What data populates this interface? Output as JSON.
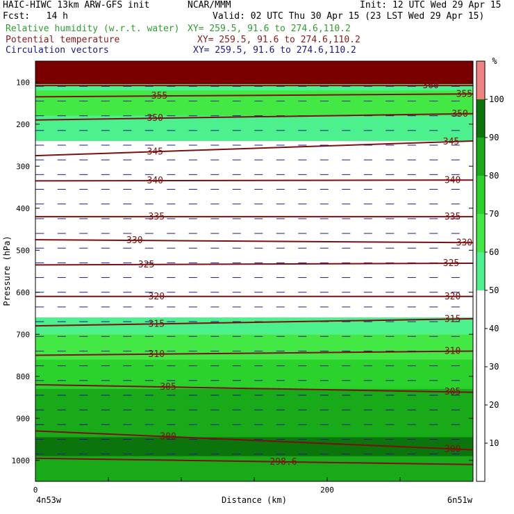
{
  "header": {
    "line1_left": "HAIC-HIWC 13km ARW-GFS init",
    "line1_mid": "NCAR/MMM",
    "line1_right": "Init: 12 UTC Wed 29 Apr 15",
    "line2_left": "Fcst:   14 h",
    "line2_right": "Valid: 02 UTC Thu 30 Apr 15 (23 LST Wed 29 Apr 15)",
    "legend": [
      {
        "label": "Relative humidity (w.r.t. water)",
        "xy": "XY= 259.5, 91.6 to 274.6,110.2",
        "color": "#2e9e2e"
      },
      {
        "label": "Potential temperature",
        "xy": "XY= 259.5, 91.6 to 274.6,110.2",
        "color": "#8b1a1a"
      },
      {
        "label": "Circulation vectors",
        "xy": "XY= 259.5, 91.6 to 274.6,110.2",
        "color": "#1a1a8b"
      }
    ]
  },
  "chart_data": {
    "type": "heatmap",
    "xlabel": "Distance (km)",
    "ylabel": "Pressure (hPa)",
    "xlim": [
      0,
      300
    ],
    "ylim": [
      1050,
      50
    ],
    "x_ticks": [
      0,
      200
    ],
    "y_ticks": [
      100,
      200,
      300,
      400,
      500,
      600,
      700,
      800,
      900,
      1000
    ],
    "x_endpoints": {
      "left": "4n53w",
      "right": "6n51w"
    },
    "colorbar": {
      "unit": "%",
      "ticks": [
        10,
        20,
        30,
        40,
        50,
        60,
        70,
        80,
        90,
        100
      ],
      "levels": [
        {
          "from": 50,
          "to": 60,
          "color": "#4cf08c"
        },
        {
          "from": 60,
          "to": 70,
          "color": "#44e844"
        },
        {
          "from": 70,
          "to": 80,
          "color": "#2cd22c"
        },
        {
          "from": 80,
          "to": 90,
          "color": "#18aa18"
        },
        {
          "from": 90,
          "to": 100,
          "color": "#0b740b"
        },
        {
          "from": 100,
          "to": 110,
          "color": "#f08282"
        }
      ]
    },
    "rh_regions": [
      {
        "color": "#7a0000",
        "top": 50,
        "bottom": 105
      },
      {
        "color": "#4cf08c",
        "top": 105,
        "bottom": 240
      },
      {
        "color": "#44e844",
        "top": 120,
        "bottom": 180
      },
      {
        "color": "#4cf08c",
        "top": 660,
        "bottom": 700
      },
      {
        "color": "#44e844",
        "top": 700,
        "bottom": 760
      },
      {
        "color": "#2cd22c",
        "top": 760,
        "bottom": 1050
      },
      {
        "color": "#18aa18",
        "top": 830,
        "bottom": 1050
      },
      {
        "color": "#0b740b",
        "top": 945,
        "bottom": 990
      }
    ],
    "theta_contours": [
      {
        "label": "360",
        "x": [
          0,
          300
        ],
        "p": [
          108,
          108
        ],
        "label_x": 271
      },
      {
        "label": "355",
        "x": [
          0,
          300
        ],
        "p": [
          135,
          128
        ],
        "label_x": 85
      },
      {
        "label": "355",
        "x": [
          0,
          300
        ],
        "p": [
          135,
          128
        ],
        "label_x": 294
      },
      {
        "label": "350",
        "x": [
          0,
          300
        ],
        "p": [
          190,
          175
        ],
        "label_x": 82
      },
      {
        "label": "350",
        "x": [
          0,
          300
        ],
        "p": [
          190,
          175
        ],
        "label_x": 291
      },
      {
        "label": "345",
        "x": [
          0,
          300
        ],
        "p": [
          275,
          240
        ],
        "label_x": 82
      },
      {
        "label": "345",
        "x": [
          0,
          300
        ],
        "p": [
          275,
          240
        ],
        "label_x": 285
      },
      {
        "label": "340",
        "x": [
          0,
          300
        ],
        "p": [
          335,
          333
        ],
        "label_x": 82
      },
      {
        "label": "340",
        "x": [
          0,
          300
        ],
        "p": [
          335,
          333
        ],
        "label_x": 286
      },
      {
        "label": "335",
        "x": [
          0,
          300
        ],
        "p": [
          420,
          420
        ],
        "label_x": 83
      },
      {
        "label": "335",
        "x": [
          0,
          300
        ],
        "p": [
          420,
          420
        ],
        "label_x": 286
      },
      {
        "label": "330",
        "x": [
          0,
          300
        ],
        "p": [
          475,
          482
        ],
        "label_x": 68
      },
      {
        "label": "330",
        "x": [
          0,
          300
        ],
        "p": [
          475,
          482
        ],
        "label_x": 294
      },
      {
        "label": "325",
        "x": [
          0,
          300
        ],
        "p": [
          535,
          531
        ],
        "label_x": 76
      },
      {
        "label": "325",
        "x": [
          0,
          300
        ],
        "p": [
          535,
          531
        ],
        "label_x": 285
      },
      {
        "label": "320",
        "x": [
          0,
          300
        ],
        "p": [
          610,
          610
        ],
        "label_x": 83
      },
      {
        "label": "320",
        "x": [
          0,
          300
        ],
        "p": [
          610,
          610
        ],
        "label_x": 286
      },
      {
        "label": "315",
        "x": [
          0,
          300
        ],
        "p": [
          680,
          663
        ],
        "label_x": 83
      },
      {
        "label": "315",
        "x": [
          0,
          300
        ],
        "p": [
          680,
          663
        ],
        "label_x": 286
      },
      {
        "label": "310",
        "x": [
          0,
          300
        ],
        "p": [
          750,
          740
        ],
        "label_x": 83
      },
      {
        "label": "310",
        "x": [
          0,
          300
        ],
        "p": [
          750,
          740
        ],
        "label_x": 286
      },
      {
        "label": "305",
        "x": [
          0,
          300
        ],
        "p": [
          820,
          838
        ],
        "label_x": 91
      },
      {
        "label": "305",
        "x": [
          0,
          300
        ],
        "p": [
          820,
          838
        ],
        "label_x": 286
      },
      {
        "label": "300",
        "x": [
          0,
          300
        ],
        "p": [
          930,
          975
        ],
        "label_x": 91
      },
      {
        "label": "300",
        "x": [
          0,
          300
        ],
        "p": [
          930,
          975
        ],
        "label_x": 286
      },
      {
        "label": "298.6",
        "x": [
          0,
          300
        ],
        "p": [
          995,
          1010
        ],
        "label_x": 170
      }
    ],
    "grid": false
  }
}
